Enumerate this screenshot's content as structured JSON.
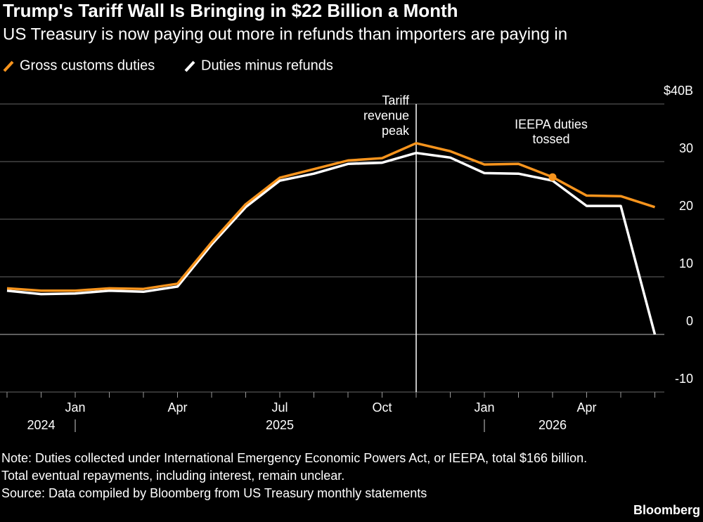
{
  "chart_data": {
    "type": "line",
    "title": "Trump's Tariff Wall Is Bringing in $22 Billion a Month",
    "subtitle": "US Treasury is now paying out more in refunds than importers are paying in",
    "x": [
      "2024-11",
      "2024-12",
      "2025-01",
      "2025-02",
      "2025-03",
      "2025-04",
      "2025-05",
      "2025-06",
      "2025-07",
      "2025-08",
      "2025-09",
      "2025-10",
      "2025-11",
      "2025-12",
      "2026-01",
      "2026-02",
      "2026-03",
      "2026-04",
      "2026-05",
      "2026-06"
    ],
    "series": [
      {
        "name": "Gross customs duties",
        "color": "#f7941d",
        "values": [
          8.0,
          7.6,
          7.6,
          8.0,
          7.9,
          8.8,
          16.0,
          22.6,
          27.2,
          28.7,
          30.2,
          30.6,
          33.2,
          31.8,
          29.5,
          29.6,
          27.3,
          24.1,
          24.0,
          22.1
        ]
      },
      {
        "name": "Duties minus refunds",
        "color": "#ffffff",
        "values": [
          7.6,
          7.0,
          7.1,
          7.6,
          7.4,
          8.3,
          15.6,
          22.1,
          26.7,
          27.9,
          29.6,
          29.8,
          31.5,
          30.7,
          28.0,
          27.9,
          26.7,
          22.3,
          22.3,
          0
        ]
      }
    ],
    "ylim": [
      -10,
      40
    ],
    "yticks": [
      {
        "value": 40,
        "label": "$40B"
      },
      30,
      20,
      10,
      0,
      -10
    ],
    "x_ticks": [
      {
        "value": "2025-01",
        "label": "Jan"
      },
      {
        "value": "2025-04",
        "label": "Apr"
      },
      {
        "value": "2025-07",
        "label": "Jul"
      },
      {
        "value": "2025-10",
        "label": "Oct"
      },
      {
        "value": "2026-01",
        "label": "Jan"
      },
      {
        "value": "2026-04",
        "label": "Apr"
      }
    ],
    "year_labels": [
      {
        "value": "2024-12",
        "label": "2024"
      },
      {
        "value": "2025-07",
        "label": "2025"
      },
      {
        "value": "2026-03",
        "label": "2026"
      }
    ],
    "grid": true,
    "annotations": [
      {
        "x": "2025-11",
        "lines": [
          "Tariff",
          "revenue",
          "peak"
        ]
      },
      {
        "x": "2026-03",
        "lines": [
          "IEEPA duties",
          "tossed"
        ]
      }
    ],
    "notes": [
      "Note: Duties collected under International Emergency Economic Powers Act, or IEEPA, total $166 billion.",
      "Total eventual repayments, including interest, remain unclear.",
      "Source: Data compiled by Bloomberg from US Treasury monthly statements"
    ],
    "brand": "Bloomberg"
  }
}
